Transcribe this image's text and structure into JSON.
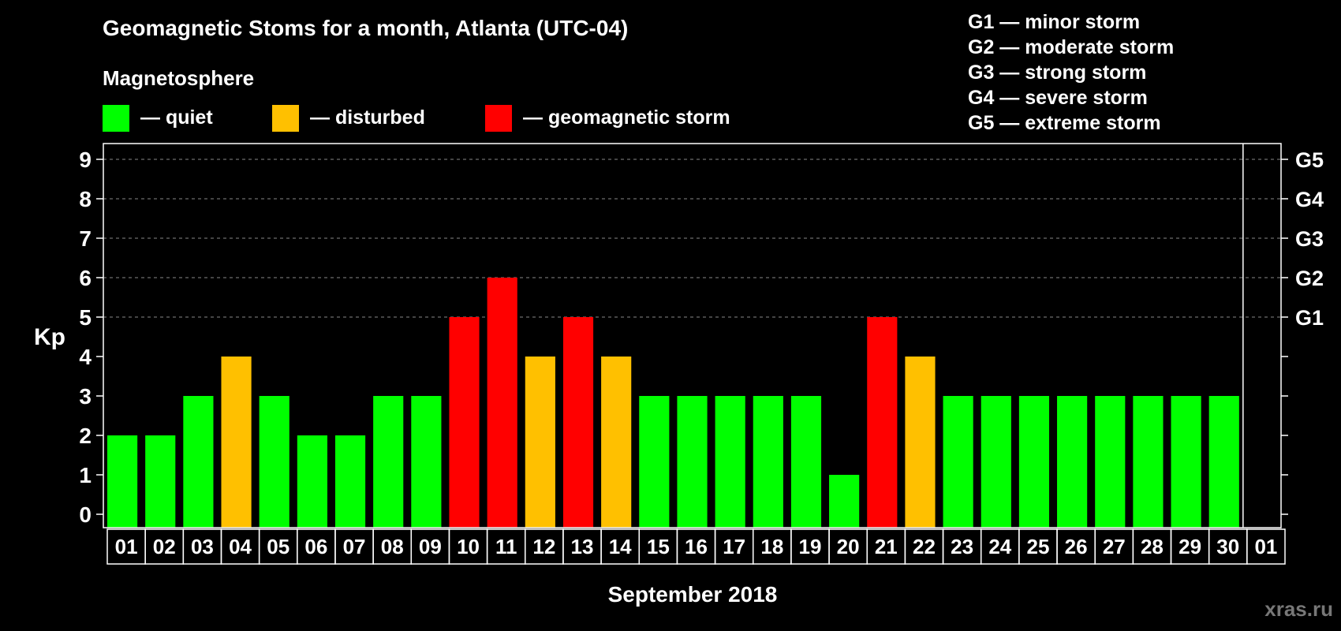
{
  "header": {
    "title": "Geomagnetic Stoms for a month, Atlanta (UTC-04)",
    "legend_heading": "Magnetosphere"
  },
  "legend": [
    {
      "key": "quiet",
      "label": "— quiet",
      "color": "#00ff00"
    },
    {
      "key": "disturbed",
      "label": "— disturbed",
      "color": "#ffc000"
    },
    {
      "key": "storm",
      "label": "— geomagnetic storm",
      "color": "#ff0000"
    }
  ],
  "g_levels": [
    "G1 — minor storm",
    "G2 — moderate storm",
    "G3 — strong storm",
    "G4 — severe storm",
    "G5 — extreme storm"
  ],
  "watermark": "xras.ru",
  "chart_data": {
    "type": "bar",
    "title": "Geomagnetic Stoms for a month, Atlanta (UTC-04)",
    "xlabel": "September 2018",
    "ylabel": "Kp",
    "ylim": [
      0,
      9
    ],
    "yticks": [
      0,
      1,
      2,
      3,
      4,
      5,
      6,
      7,
      8,
      9
    ],
    "right_axis_labels": [
      {
        "kp": 5,
        "label": "G1"
      },
      {
        "kp": 6,
        "label": "G2"
      },
      {
        "kp": 7,
        "label": "G3"
      },
      {
        "kp": 8,
        "label": "G4"
      },
      {
        "kp": 9,
        "label": "G5"
      }
    ],
    "grid": "dashed horizontal at Kp 5-9",
    "categories": [
      "01",
      "02",
      "03",
      "04",
      "05",
      "06",
      "07",
      "08",
      "09",
      "10",
      "11",
      "12",
      "13",
      "14",
      "15",
      "16",
      "17",
      "18",
      "19",
      "20",
      "21",
      "22",
      "23",
      "24",
      "25",
      "26",
      "27",
      "28",
      "29",
      "30",
      "01"
    ],
    "values": [
      2,
      2,
      3,
      4,
      3,
      2,
      2,
      3,
      3,
      5,
      6,
      4,
      5,
      4,
      3,
      3,
      3,
      3,
      3,
      1,
      5,
      4,
      3,
      3,
      3,
      3,
      3,
      3,
      3,
      3,
      null
    ],
    "status": [
      "quiet",
      "quiet",
      "quiet",
      "disturbed",
      "quiet",
      "quiet",
      "quiet",
      "quiet",
      "quiet",
      "storm",
      "storm",
      "disturbed",
      "storm",
      "disturbed",
      "quiet",
      "quiet",
      "quiet",
      "quiet",
      "quiet",
      "quiet",
      "storm",
      "disturbed",
      "quiet",
      "quiet",
      "quiet",
      "quiet",
      "quiet",
      "quiet",
      "quiet",
      "quiet",
      null
    ],
    "colors": {
      "quiet": "#00ff00",
      "disturbed": "#ffc000",
      "storm": "#ff0000"
    }
  }
}
